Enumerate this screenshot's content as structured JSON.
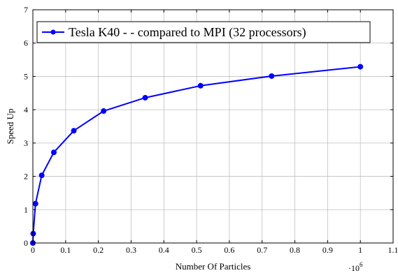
{
  "chart_data": {
    "type": "line",
    "title": "",
    "xlabel": "Number Of Particles",
    "ylabel": "Speed Up",
    "x_multiplier_label": "·10",
    "x_multiplier_exponent": "6",
    "xlim": [
      0,
      1.1
    ],
    "ylim": [
      0,
      7
    ],
    "xticks": [
      0,
      0.1,
      0.2,
      0.3,
      0.4,
      0.5,
      0.6,
      0.7,
      0.8,
      0.9,
      1,
      1.1
    ],
    "xtick_labels": [
      "0",
      "0.1",
      "0.2",
      "0.3",
      "0.4",
      "0.5",
      "0.6",
      "0.7",
      "0.8",
      "0.9",
      "1",
      "1.1"
    ],
    "yticks": [
      0,
      1,
      2,
      3,
      4,
      5,
      6,
      7
    ],
    "ytick_labels": [
      "0",
      "1",
      "2",
      "3",
      "4",
      "5",
      "6",
      "7"
    ],
    "grid": true,
    "legend_position": "top-left",
    "series": [
      {
        "name": "Tesla K40 - - compared to MPI (32 processors)",
        "color": "#0000ff",
        "marker": "circle",
        "x": [
          0,
          0.001,
          0.008,
          0.027,
          0.064,
          0.125,
          0.216,
          0.343,
          0.512,
          0.729,
          1.0
        ],
        "y": [
          0,
          0.28,
          1.18,
          2.03,
          2.72,
          3.37,
          3.96,
          4.36,
          4.72,
          5.01,
          5.29
        ]
      }
    ]
  }
}
